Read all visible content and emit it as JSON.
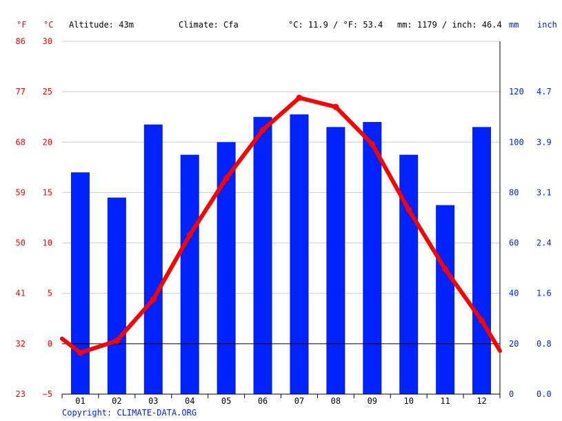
{
  "header": {
    "f_unit": "°F",
    "c_unit": "°C",
    "altitude": "Altitude: 43m",
    "climate": "Climate: Cfa",
    "temp_avg": "°C: 11.9 / °F: 53.4",
    "precip_total": "mm: 1179 / inch: 46.4",
    "mm_unit": "mm",
    "inch_unit": "inch"
  },
  "footer": {
    "copyright": "Copyright: CLIMATE-DATA.ORG"
  },
  "chart_data": {
    "type": "bar",
    "categories": [
      "01",
      "02",
      "03",
      "04",
      "05",
      "06",
      "07",
      "08",
      "09",
      "10",
      "11",
      "12"
    ],
    "series": [
      {
        "axis": "precipitation",
        "unit": "mm",
        "values": [
          88,
          78,
          107,
          95,
          100,
          110,
          111,
          106,
          108,
          95,
          75,
          106
        ],
        "color": "#0022ff",
        "chart_type": "bar"
      },
      {
        "axis": "temperature",
        "unit": "°C",
        "values": [
          -0.9,
          0.3,
          4.4,
          10.8,
          16.4,
          21.2,
          24.4,
          23.5,
          19.8,
          13.3,
          7.4,
          2.3
        ],
        "color": "#ff0000",
        "chart_type": "line"
      }
    ],
    "temp_edge_values": {
      "start": 0.5,
      "end": -0.7
    },
    "left_axis_f_ticks": [
      "86",
      "77",
      "68",
      "59",
      "50",
      "41",
      "32",
      "23"
    ],
    "left_axis_c_ticks": [
      "30",
      "25",
      "20",
      "15",
      "10",
      "5",
      "0",
      "−5"
    ],
    "right_axis_mm_ticks": [
      "120",
      "100",
      "80",
      "60",
      "40",
      "20",
      "0"
    ],
    "right_axis_inch_ticks": [
      "4.7",
      "3.9",
      "3.1",
      "2.4",
      "1.6",
      "0.8",
      "0.0"
    ],
    "temp_range_c": [
      -5,
      30
    ],
    "precip_range_mm": [
      0,
      140
    ],
    "gridlines": true,
    "colors": {
      "temperature": "#ff0000",
      "precipitation": "#0022ff",
      "grid": "#cccccc",
      "axis": "#000000"
    }
  }
}
